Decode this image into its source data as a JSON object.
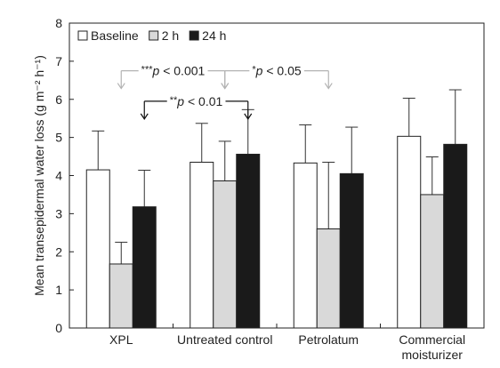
{
  "chart_data": {
    "type": "bar",
    "ylabel": "Mean transepidermal water loss (g m⁻² h⁻¹)",
    "ylim": [
      0,
      8
    ],
    "yticks": [
      "0",
      "1",
      "2",
      "3",
      "4",
      "5",
      "6",
      "7",
      "8"
    ],
    "categories": [
      "XPL",
      "Untreated control",
      "Petrolatum",
      "Commercial moisturizer"
    ],
    "category_lines": [
      [
        "XPL"
      ],
      [
        "Untreated control"
      ],
      [
        "Petrolatum"
      ],
      [
        "Commercial",
        "moisturizer"
      ]
    ],
    "series": [
      {
        "name": "Baseline",
        "color": "#ffffff",
        "values": [
          4.15,
          4.35,
          4.33,
          5.03
        ],
        "errors": [
          1.02,
          1.02,
          1.0,
          1.0
        ]
      },
      {
        "name": "2 h",
        "color": "#d9d9d9",
        "values": [
          1.68,
          3.86,
          2.6,
          3.5
        ],
        "errors": [
          0.57,
          1.04,
          1.75,
          0.99
        ]
      },
      {
        "name": "24 h",
        "color": "#1a1a1a",
        "values": [
          3.18,
          4.56,
          4.05,
          4.82
        ],
        "errors": [
          0.96,
          1.17,
          1.22,
          1.43
        ]
      }
    ],
    "legend_position": "top-left",
    "annotations": [
      {
        "label_stars": "***",
        "label_p": "p",
        "label_rest": " < 0.001",
        "from": "XPL",
        "to": "Untreated control",
        "series": "2 h",
        "level": 6.75,
        "arrows": "down",
        "color": "#b3b3b3"
      },
      {
        "label_stars": "*",
        "label_p": "p",
        "label_rest": " < 0.05",
        "from": "Untreated control",
        "to": "Petrolatum",
        "series": "2 h",
        "level": 6.75,
        "arrows": "down",
        "color": "#b3b3b3"
      },
      {
        "label_stars": "**",
        "label_p": "p",
        "label_rest": " < 0.01",
        "from": "XPL",
        "to": "Untreated control",
        "series": "24 h",
        "level": 5.95,
        "arrows": "down",
        "color": "#111111"
      }
    ]
  }
}
